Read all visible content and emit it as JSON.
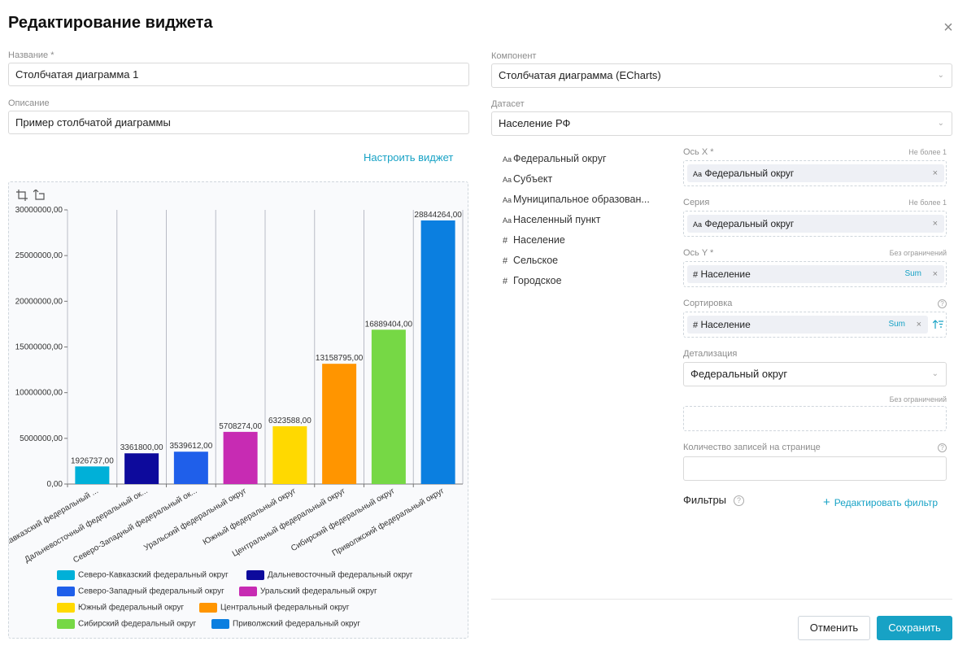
{
  "dialog": {
    "title": "Редактирование виджета",
    "close": "×"
  },
  "form": {
    "name_label": "Название *",
    "name_value": "Столбчатая диаграмма 1",
    "desc_label": "Описание",
    "desc_value": "Пример столбчатой диаграммы",
    "component_label": "Компонент",
    "component_value": "Столбчатая диаграмма (ECharts)",
    "dataset_label": "Датасет",
    "dataset_value": "Население РФ",
    "configure_link": "Настроить виджет"
  },
  "fields": [
    {
      "icon": "Aa",
      "label": "Федеральный округ"
    },
    {
      "icon": "Aa",
      "label": "Субъект"
    },
    {
      "icon": "Aa",
      "label": "Муниципальное образован..."
    },
    {
      "icon": "Aa",
      "label": "Населенный пункт"
    },
    {
      "icon": "#",
      "label": "Население"
    },
    {
      "icon": "#",
      "label": "Сельское"
    },
    {
      "icon": "#",
      "label": "Городское"
    }
  ],
  "config": {
    "x_axis": {
      "label": "Ось X *",
      "hint": "Не более 1",
      "chip_icon": "Aa",
      "chip": "Федеральный округ"
    },
    "series": {
      "label": "Серия",
      "hint": "Не более 1",
      "chip_icon": "Aa",
      "chip": "Федеральный округ"
    },
    "y_axis": {
      "label": "Ось Y *",
      "hint": "Без ограничений",
      "chip_icon": "#",
      "chip": "Население",
      "agg": "Sum"
    },
    "sort": {
      "label": "Сортировка",
      "chip_icon": "#",
      "chip": "Население",
      "agg": "Sum"
    },
    "detail": {
      "label": "Детализация",
      "value": "Федеральный округ",
      "hint": "Без ограничений"
    },
    "page_size": {
      "label": "Количество записей на странице",
      "value": ""
    },
    "filters": {
      "label": "Фильтры",
      "edit_link": "Редактировать фильтр"
    },
    "close_x": "×",
    "help": "?"
  },
  "buttons": {
    "cancel": "Отменить",
    "save": "Сохранить"
  },
  "toolbar_icons": [
    "crop-icon",
    "rotate-icon"
  ],
  "chart_data": {
    "type": "bar",
    "categories": [
      "Северо-Кавказский федеральный округ",
      "Дальневосточный федеральный округ",
      "Северо-Западный федеральный округ",
      "Уральский федеральный округ",
      "Южный федеральный округ",
      "Центральный федеральный округ",
      "Сибирский федеральный округ",
      "Приволжский федеральный округ"
    ],
    "category_tick_labels": [
      "кавказский федеральный ...",
      "Дальневосточный федеральный ок...",
      "Северо-Западный федеральный ок...",
      "Уральский федеральный округ",
      "Южный федеральный округ",
      "Центральный федеральный округ",
      "Сибирский федеральный округ",
      "Приволжский федеральный округ"
    ],
    "values": [
      1926737,
      3361800,
      3539612,
      5708274,
      6323588,
      13158795,
      16889404,
      28844264
    ],
    "value_labels": [
      "1926737,00",
      "3361800,00",
      "3539612,00",
      "5708274,00",
      "6323588,00",
      "13158795,00",
      "16889404,00",
      "28844264,00"
    ],
    "colors": [
      "#00b0d8",
      "#0d0a9c",
      "#1f5fea",
      "#c72bb3",
      "#ffd900",
      "#ff9500",
      "#76d845",
      "#0b7fe0"
    ],
    "ylim": [
      0,
      30000000
    ],
    "y_ticks": [
      0,
      5000000,
      10000000,
      15000000,
      20000000,
      25000000,
      30000000
    ],
    "y_tick_labels": [
      "0,00",
      "5000000,00",
      "10000000,00",
      "15000000,00",
      "20000000,00",
      "25000000,00",
      "30000000,00"
    ],
    "grid": true,
    "legend_position": "bottom"
  }
}
